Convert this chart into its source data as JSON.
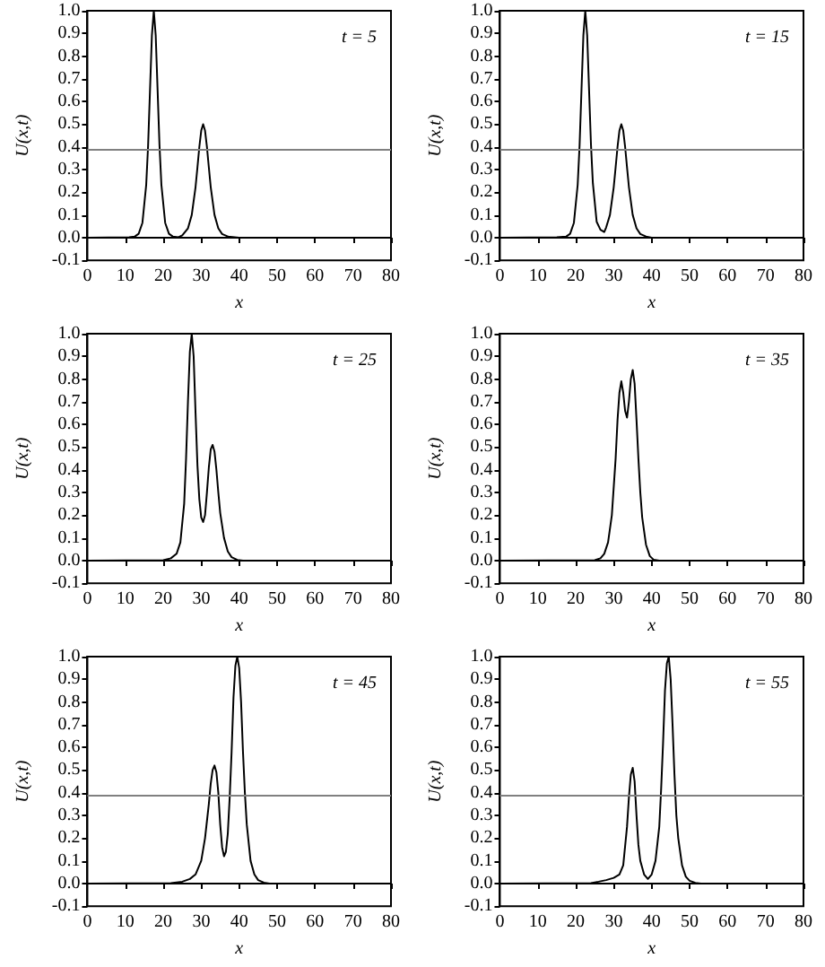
{
  "chart_data": [
    {
      "type": "line",
      "xlabel": "x",
      "ylabel": "U(x,t)",
      "annotations": [
        "t = 5"
      ],
      "marker": "none",
      "xlim": [
        0,
        80
      ],
      "xticks": [
        0,
        10,
        20,
        30,
        40,
        50,
        60,
        70,
        80
      ],
      "ylim": [
        -0.1,
        1
      ],
      "yticks": [
        {
          "value": -0.1,
          "label": "-0.1"
        },
        {
          "value": 0,
          "label": "0.0"
        },
        0.1,
        0.2,
        0.3,
        0.4,
        0.5,
        0.6,
        0.7,
        0.8,
        0.9,
        {
          "value": 1,
          "label": "1.0"
        }
      ],
      "ref_lines": [
        {
          "axis": "y",
          "value": 0.385,
          "color": "#808080"
        }
      ],
      "series": [
        {
          "color": "#000000",
          "x": [
            0,
            11,
            12.5,
            13.5,
            14.5,
            15.5,
            16,
            16.5,
            17,
            17.5,
            18,
            18.5,
            19,
            19.5,
            20.5,
            21.5,
            22.5,
            24,
            25,
            26.5,
            27.5,
            28.5,
            29,
            29.5,
            30,
            30.5,
            31,
            31.5,
            32,
            32.5,
            33.5,
            34.5,
            35.5,
            37,
            40,
            80
          ],
          "values": [
            0,
            0.002,
            0.005,
            0.017,
            0.065,
            0.233,
            0.407,
            0.65,
            0.892,
            1,
            0.892,
            0.65,
            0.407,
            0.233,
            0.065,
            0.017,
            0.005,
            0.002,
            0.01,
            0.041,
            0.1,
            0.223,
            0.31,
            0.4,
            0.472,
            0.5,
            0.472,
            0.4,
            0.31,
            0.223,
            0.1,
            0.041,
            0.016,
            0.005,
            0,
            0
          ]
        }
      ]
    },
    {
      "type": "line",
      "xlabel": "x",
      "ylabel": "U(x,t)",
      "annotations": [
        "t = 15"
      ],
      "marker": "none",
      "xlim": [
        0,
        80
      ],
      "xticks": [
        0,
        10,
        20,
        30,
        40,
        50,
        60,
        70,
        80
      ],
      "ylim": [
        -0.1,
        1
      ],
      "yticks": [
        {
          "value": -0.1,
          "label": "-0.1"
        },
        {
          "value": 0,
          "label": "0.0"
        },
        0.1,
        0.2,
        0.3,
        0.4,
        0.5,
        0.6,
        0.7,
        0.8,
        0.9,
        {
          "value": 1,
          "label": "1.0"
        }
      ],
      "ref_lines": [
        {
          "axis": "y",
          "value": 0.385,
          "color": "#808080"
        }
      ],
      "series": [
        {
          "color": "#000000",
          "x": [
            0,
            15,
            17.5,
            18.5,
            19.5,
            20.5,
            21,
            21.5,
            22,
            22.5,
            23,
            23.5,
            24,
            24.5,
            25.5,
            26.5,
            27.5,
            28,
            29,
            30,
            30.5,
            31,
            31.5,
            32,
            32.5,
            33,
            33.5,
            34,
            35,
            36,
            37,
            38.5,
            40,
            80
          ],
          "values": [
            0,
            0.002,
            0.005,
            0.017,
            0.065,
            0.233,
            0.407,
            0.65,
            0.892,
            1,
            0.892,
            0.65,
            0.41,
            0.24,
            0.07,
            0.035,
            0.025,
            0.045,
            0.1,
            0.223,
            0.31,
            0.4,
            0.472,
            0.5,
            0.472,
            0.4,
            0.31,
            0.223,
            0.1,
            0.041,
            0.016,
            0.005,
            0,
            0
          ]
        }
      ]
    },
    {
      "type": "line",
      "xlabel": "x",
      "ylabel": "U(x,t)",
      "annotations": [
        "t = 25"
      ],
      "marker": "none",
      "xlim": [
        0,
        80
      ],
      "xticks": [
        0,
        10,
        20,
        30,
        40,
        50,
        60,
        70,
        80
      ],
      "ylim": [
        -0.1,
        1
      ],
      "yticks": [
        {
          "value": -0.1,
          "label": "-0.1"
        },
        {
          "value": 0,
          "label": "0.0"
        },
        0.1,
        0.2,
        0.3,
        0.4,
        0.5,
        0.6,
        0.7,
        0.8,
        0.9,
        {
          "value": 1,
          "label": "1.0"
        }
      ],
      "series": [
        {
          "color": "#000000",
          "x": [
            0,
            20,
            22,
            23.5,
            24.5,
            25.5,
            26,
            26.5,
            27,
            27.5,
            28,
            28.5,
            29,
            29.5,
            30,
            30.5,
            31,
            31.5,
            32,
            32.5,
            33,
            33.5,
            34,
            34.5,
            35,
            36,
            37,
            38,
            39.5,
            41,
            80
          ],
          "values": [
            0,
            0.002,
            0.01,
            0.03,
            0.08,
            0.25,
            0.45,
            0.7,
            0.92,
            1,
            0.9,
            0.65,
            0.42,
            0.27,
            0.19,
            0.17,
            0.2,
            0.3,
            0.41,
            0.49,
            0.51,
            0.48,
            0.4,
            0.3,
            0.21,
            0.1,
            0.04,
            0.015,
            0.003,
            0,
            0
          ]
        }
      ]
    },
    {
      "type": "line",
      "xlabel": "x",
      "ylabel": "U(x,t)",
      "annotations": [
        "t = 35"
      ],
      "marker": "none",
      "xlim": [
        0,
        80
      ],
      "xticks": [
        0,
        10,
        20,
        30,
        40,
        50,
        60,
        70,
        80
      ],
      "ylim": [
        -0.1,
        1
      ],
      "yticks": [
        {
          "value": -0.1,
          "label": "-0.1"
        },
        {
          "value": 0,
          "label": "0.0"
        },
        0.1,
        0.2,
        0.3,
        0.4,
        0.5,
        0.6,
        0.7,
        0.8,
        0.9,
        {
          "value": 1,
          "label": "1.0"
        }
      ],
      "series": [
        {
          "color": "#000000",
          "x": [
            0,
            25,
            26.5,
            27.5,
            28.5,
            29.5,
            30.5,
            31,
            31.5,
            32,
            32.5,
            33,
            33.5,
            34,
            34.5,
            35,
            35.5,
            36,
            36.5,
            37,
            37.5,
            38.5,
            39.5,
            40.5,
            42,
            80
          ],
          "values": [
            0,
            0.002,
            0.01,
            0.03,
            0.08,
            0.2,
            0.45,
            0.62,
            0.74,
            0.79,
            0.74,
            0.66,
            0.63,
            0.7,
            0.8,
            0.84,
            0.78,
            0.62,
            0.45,
            0.3,
            0.19,
            0.07,
            0.02,
            0.004,
            0,
            0
          ]
        }
      ]
    },
    {
      "type": "line",
      "xlabel": "x",
      "ylabel": "U(x,t)",
      "annotations": [
        "t = 45"
      ],
      "marker": "none",
      "xlim": [
        0,
        80
      ],
      "xticks": [
        0,
        10,
        20,
        30,
        40,
        50,
        60,
        70,
        80
      ],
      "ylim": [
        -0.1,
        1
      ],
      "yticks": [
        {
          "value": -0.1,
          "label": "-0.1"
        },
        {
          "value": 0,
          "label": "0.0"
        },
        0.1,
        0.2,
        0.3,
        0.4,
        0.5,
        0.6,
        0.7,
        0.8,
        0.9,
        {
          "value": 1,
          "label": "1.0"
        }
      ],
      "ref_lines": [
        {
          "axis": "y",
          "value": 0.385,
          "color": "#808080"
        }
      ],
      "series": [
        {
          "color": "#000000",
          "x": [
            0,
            22,
            25,
            27,
            28.5,
            30,
            31,
            32,
            32.5,
            33,
            33.5,
            34,
            34.5,
            35,
            35.5,
            36,
            36.5,
            37,
            37.5,
            38,
            38.5,
            39,
            39.5,
            40,
            40.5,
            41,
            41.5,
            42,
            43,
            44,
            45,
            46.5,
            48,
            80
          ],
          "values": [
            0,
            0.002,
            0.008,
            0.02,
            0.04,
            0.1,
            0.2,
            0.35,
            0.44,
            0.5,
            0.52,
            0.49,
            0.4,
            0.26,
            0.16,
            0.12,
            0.14,
            0.22,
            0.38,
            0.58,
            0.82,
            0.96,
            1,
            0.95,
            0.8,
            0.58,
            0.4,
            0.26,
            0.1,
            0.04,
            0.015,
            0.004,
            0,
            0
          ]
        }
      ]
    },
    {
      "type": "line",
      "xlabel": "x",
      "ylabel": "U(x,t)",
      "annotations": [
        "t = 55"
      ],
      "marker": "none",
      "xlim": [
        0,
        80
      ],
      "xticks": [
        0,
        10,
        20,
        30,
        40,
        50,
        60,
        70,
        80
      ],
      "ylim": [
        -0.1,
        1
      ],
      "yticks": [
        {
          "value": -0.1,
          "label": "-0.1"
        },
        {
          "value": 0,
          "label": "0.0"
        },
        0.1,
        0.2,
        0.3,
        0.4,
        0.5,
        0.6,
        0.7,
        0.8,
        0.9,
        {
          "value": 1,
          "label": "1.0"
        }
      ],
      "ref_lines": [
        {
          "axis": "y",
          "value": 0.385,
          "color": "#808080"
        }
      ],
      "series": [
        {
          "color": "#000000",
          "x": [
            0,
            24,
            26,
            28,
            30,
            31.5,
            32.5,
            33.5,
            34,
            34.5,
            35,
            35.5,
            36,
            36.5,
            37,
            38,
            39,
            40,
            41,
            42,
            42.5,
            43,
            43.5,
            44,
            44.5,
            45,
            45.5,
            46,
            46.5,
            47,
            48,
            49,
            50,
            51.5,
            53,
            80
          ],
          "values": [
            0,
            0.002,
            0.008,
            0.015,
            0.025,
            0.04,
            0.08,
            0.25,
            0.38,
            0.48,
            0.51,
            0.45,
            0.3,
            0.17,
            0.1,
            0.04,
            0.02,
            0.04,
            0.1,
            0.25,
            0.42,
            0.62,
            0.85,
            0.97,
            1,
            0.9,
            0.7,
            0.48,
            0.3,
            0.2,
            0.08,
            0.03,
            0.012,
            0.003,
            0,
            0
          ]
        }
      ]
    }
  ]
}
